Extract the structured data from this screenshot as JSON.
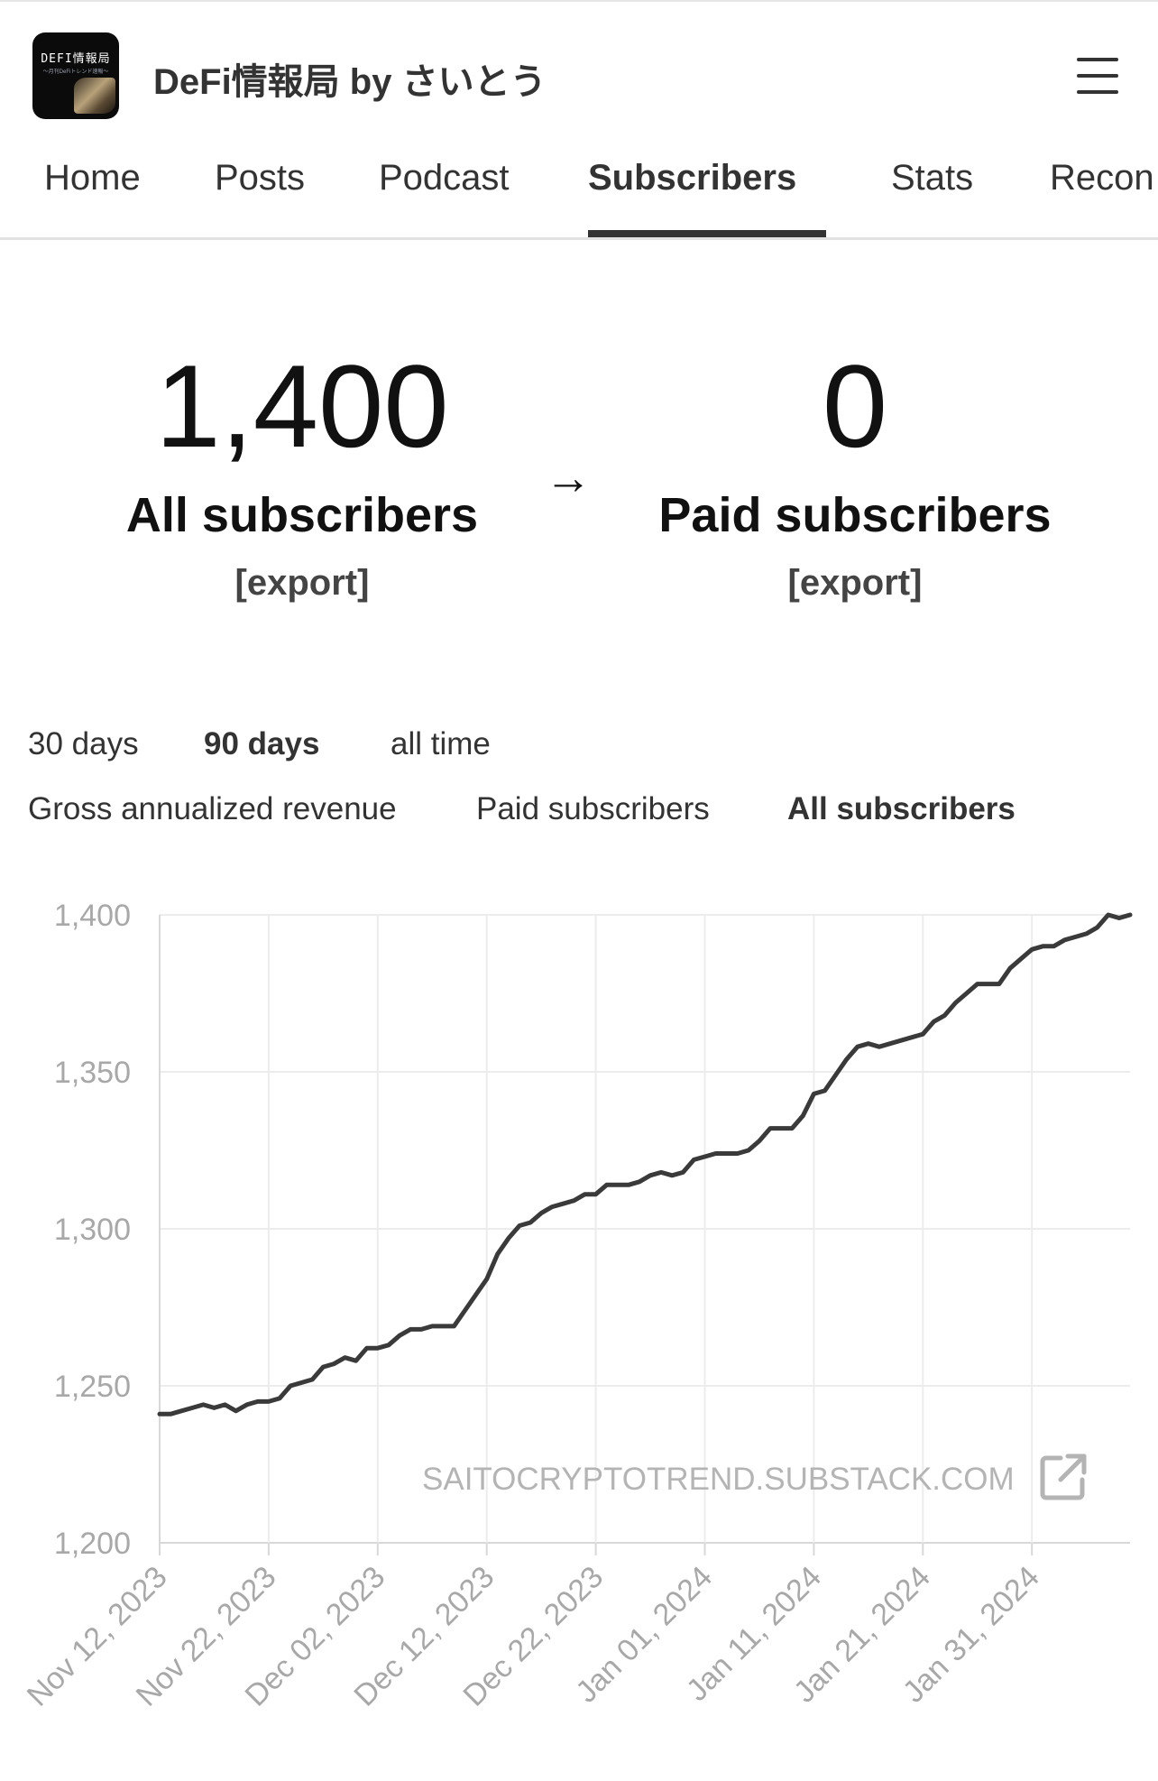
{
  "header": {
    "publication_title": "DeFi情報局 by さいとう",
    "logo_text": "DEFI情報局",
    "logo_subtext": "～月刊DeFiトレンド速報～"
  },
  "tabs": [
    {
      "label": "Home"
    },
    {
      "label": "Posts"
    },
    {
      "label": "Podcast"
    },
    {
      "label": "Subscribers",
      "active": true
    },
    {
      "label": "Stats"
    },
    {
      "label": "Recon"
    }
  ],
  "stats": {
    "all_subscribers": {
      "value": "1,400",
      "label": "All subscribers",
      "export": "[export]"
    },
    "arrow": "→",
    "paid_subscribers": {
      "value": "0",
      "label": "Paid subscribers",
      "export": "[export]"
    }
  },
  "time_ranges": [
    {
      "label": "30 days"
    },
    {
      "label": "90 days",
      "active": true
    },
    {
      "label": "all time"
    }
  ],
  "metrics": [
    {
      "label": "Gross annualized revenue"
    },
    {
      "label": "Paid subscribers"
    },
    {
      "label": "All subscribers",
      "active": true
    }
  ],
  "watermark": "SAITOCRYPTOTREND.SUBSTACK.COM",
  "chart_data": {
    "type": "line",
    "title": "",
    "xlabel": "",
    "ylabel": "",
    "ylim": [
      1200,
      1400
    ],
    "yticks": [
      1400,
      1350,
      1300,
      1250,
      1200
    ],
    "ytick_labels": [
      "1,400",
      "1,350",
      "1,300",
      "1,250",
      "1,200"
    ],
    "xticks": [
      "Nov 12, 2023",
      "Nov 22, 2023",
      "Dec 02, 2023",
      "Dec 12, 2023",
      "Dec 22, 2023",
      "Jan 01, 2024",
      "Jan 11, 2024",
      "Jan 21, 2024",
      "Jan 31, 2024"
    ],
    "grid": true,
    "line_color": "#3a3a3a",
    "series": [
      {
        "x": [
          "2023-11-12",
          "2023-11-13",
          "2023-11-14",
          "2023-11-15",
          "2023-11-16",
          "2023-11-17",
          "2023-11-18",
          "2023-11-19",
          "2023-11-20",
          "2023-11-21",
          "2023-11-22",
          "2023-11-23",
          "2023-11-24",
          "2023-11-25",
          "2023-11-26",
          "2023-11-27",
          "2023-11-28",
          "2023-11-29",
          "2023-11-30",
          "2023-12-01",
          "2023-12-02",
          "2023-12-03",
          "2023-12-04",
          "2023-12-05",
          "2023-12-06",
          "2023-12-07",
          "2023-12-08",
          "2023-12-09",
          "2023-12-10",
          "2023-12-11",
          "2023-12-12",
          "2023-12-13",
          "2023-12-14",
          "2023-12-15",
          "2023-12-16",
          "2023-12-17",
          "2023-12-18",
          "2023-12-19",
          "2023-12-20",
          "2023-12-21",
          "2023-12-22",
          "2023-12-23",
          "2023-12-24",
          "2023-12-25",
          "2023-12-26",
          "2023-12-27",
          "2023-12-28",
          "2023-12-29",
          "2023-12-30",
          "2023-12-31",
          "2024-01-01",
          "2024-01-02",
          "2024-01-03",
          "2024-01-04",
          "2024-01-05",
          "2024-01-06",
          "2024-01-07",
          "2024-01-08",
          "2024-01-09",
          "2024-01-10",
          "2024-01-11",
          "2024-01-12",
          "2024-01-13",
          "2024-01-14",
          "2024-01-15",
          "2024-01-16",
          "2024-01-17",
          "2024-01-18",
          "2024-01-19",
          "2024-01-20",
          "2024-01-21",
          "2024-01-22",
          "2024-01-23",
          "2024-01-24",
          "2024-01-25",
          "2024-01-26",
          "2024-01-27",
          "2024-01-28",
          "2024-01-29",
          "2024-01-30",
          "2024-01-31",
          "2024-02-01",
          "2024-02-02",
          "2024-02-03",
          "2024-02-04",
          "2024-02-05",
          "2024-02-06",
          "2024-02-07",
          "2024-02-08",
          "2024-02-09"
        ],
        "values": [
          1241,
          1241,
          1242,
          1243,
          1244,
          1243,
          1244,
          1242,
          1244,
          1245,
          1245,
          1246,
          1250,
          1251,
          1252,
          1256,
          1257,
          1259,
          1258,
          1262,
          1262,
          1263,
          1266,
          1268,
          1268,
          1269,
          1269,
          1269,
          1274,
          1279,
          1284,
          1292,
          1297,
          1301,
          1302,
          1305,
          1307,
          1308,
          1309,
          1311,
          1311,
          1314,
          1314,
          1314,
          1315,
          1317,
          1318,
          1317,
          1318,
          1322,
          1323,
          1324,
          1324,
          1324,
          1325,
          1328,
          1332,
          1332,
          1332,
          1336,
          1343,
          1344,
          1349,
          1354,
          1358,
          1359,
          1358,
          1359,
          1360,
          1361,
          1362,
          1366,
          1368,
          1372,
          1375,
          1378,
          1378,
          1378,
          1383,
          1386,
          1389,
          1390,
          1390,
          1392,
          1393,
          1394,
          1396,
          1400,
          1399,
          1400
        ]
      }
    ]
  }
}
